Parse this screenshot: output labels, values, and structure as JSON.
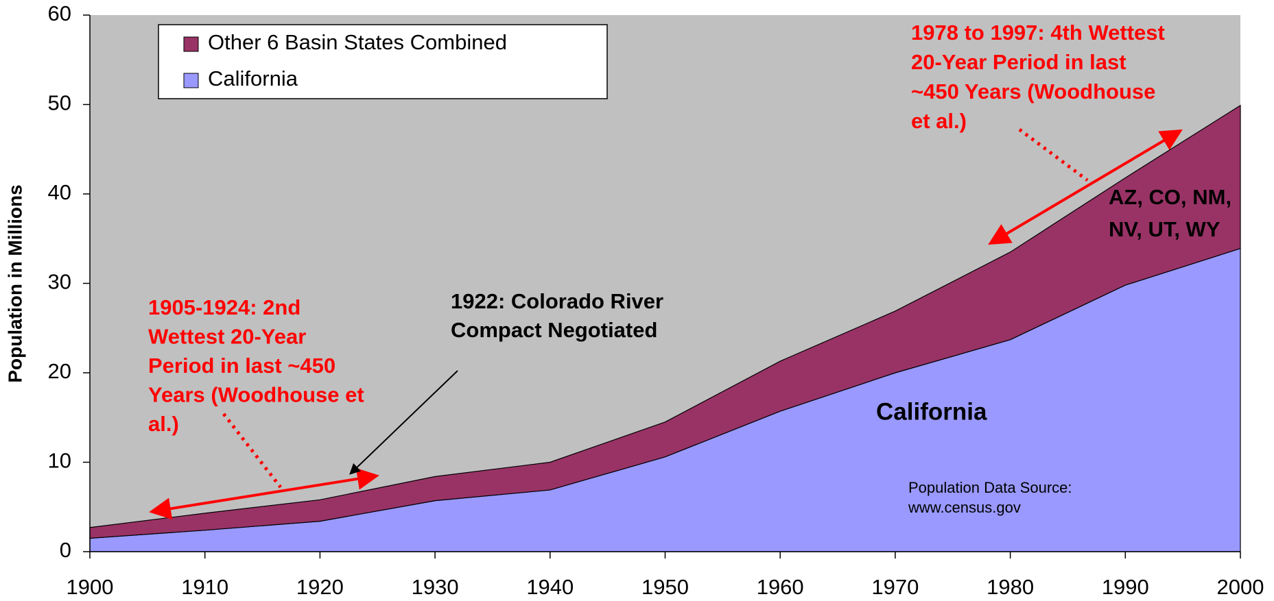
{
  "chart_data": {
    "type": "stacked_area",
    "y_label": "Population in Millions",
    "x": [
      1900,
      1910,
      1920,
      1930,
      1940,
      1950,
      1960,
      1970,
      1980,
      1990,
      2000
    ],
    "xlim": [
      1900,
      2000
    ],
    "xticks": [
      1900,
      1910,
      1920,
      1930,
      1940,
      1950,
      1960,
      1970,
      1980,
      1990,
      2000
    ],
    "ylim": [
      0,
      60
    ],
    "yticks": [
      0,
      10,
      20,
      30,
      40,
      50,
      60
    ],
    "grid": true,
    "legend": "upper left",
    "series": [
      {
        "name": "California",
        "color": "#9999ff",
        "values": [
          1.5,
          2.4,
          3.4,
          5.7,
          6.9,
          10.6,
          15.7,
          20.0,
          23.7,
          29.8,
          33.9
        ]
      },
      {
        "name": "Other 6 Basin States Combined",
        "color": "#993366",
        "values": [
          1.2,
          1.9,
          2.4,
          2.7,
          3.1,
          3.9,
          5.6,
          6.9,
          9.8,
          12.0,
          16.0
        ]
      }
    ],
    "annotations": [
      {
        "style": "red",
        "lines": [
          "1978 to 1997: 4th Wettest",
          "20-Year Period in last",
          "~450 Years (Woodhouse",
          "et al.)"
        ]
      },
      {
        "style": "blk",
        "lines": [
          "AZ, CO, NM,",
          "NV, UT, WY"
        ]
      },
      {
        "style": "red",
        "lines": [
          "1905-1924: 2nd",
          "Wettest 20-Year",
          "Period in last ~450",
          "Years (Woodhouse et",
          "al.)"
        ]
      },
      {
        "style": "blk",
        "lines": [
          "1922: Colorado River",
          "Compact Negotiated"
        ]
      },
      {
        "style": "big",
        "lines": [
          "California"
        ]
      },
      {
        "style": "src",
        "lines": [
          "Population Data Source:",
          "www.census.gov"
        ]
      }
    ]
  }
}
